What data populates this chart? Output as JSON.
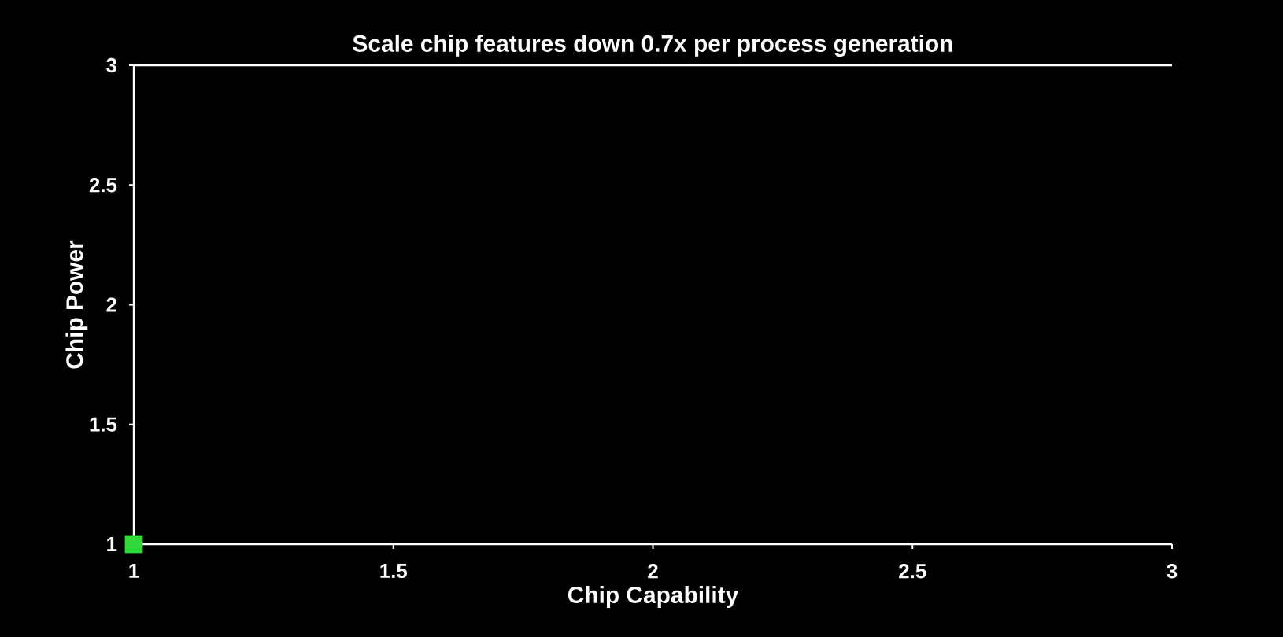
{
  "chart_data": {
    "type": "scatter",
    "title": "Scale chip features down 0.7x per process generation",
    "xlabel": "Chip Capability",
    "ylabel": "Chip Power",
    "x": [
      1
    ],
    "values": [
      1
    ],
    "color": "#2fd93a",
    "marker": "square",
    "xlim": [
      1,
      3
    ],
    "xticks": [
      1,
      1.5,
      2,
      2.5,
      3
    ],
    "ylim": [
      1,
      3
    ],
    "yticks": [
      1,
      1.5,
      2,
      2.5,
      3
    ],
    "grid": false
  }
}
